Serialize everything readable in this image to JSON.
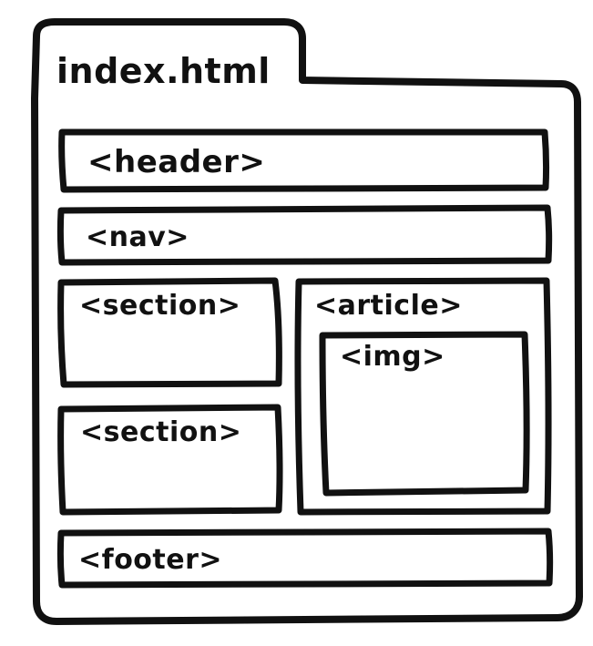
{
  "file": {
    "name": "index.html"
  },
  "elements": {
    "header": "<header>",
    "nav": "<nav>",
    "section_top": "<section>",
    "section_bottom": "<section>",
    "article": "<article>",
    "img": "<img>",
    "footer": "<footer>"
  },
  "colors": {
    "ink": "#111111",
    "background": "#ffffff"
  }
}
